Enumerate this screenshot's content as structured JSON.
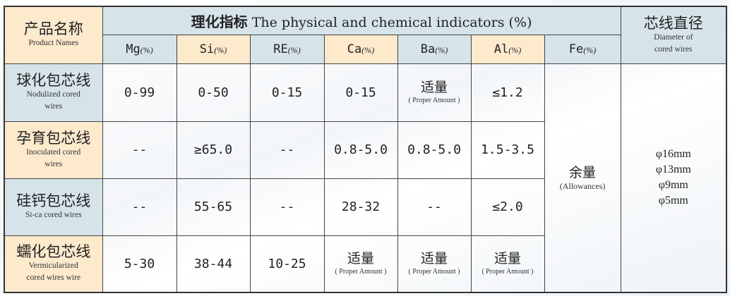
{
  "header": {
    "product_cn": "产品名称",
    "product_en": "Product Names",
    "indicators_cn": "理化指标",
    "indicators_en": "The physical and chemical indicators (%)",
    "diameter_cn": "芯线直径",
    "diameter_en_1": "Diameter of",
    "diameter_en_2": "cored wires",
    "columns": [
      {
        "el": "Mg",
        "unit": "(%)"
      },
      {
        "el": "Si",
        "unit": "(%)"
      },
      {
        "el": "RE",
        "unit": "(%)"
      },
      {
        "el": "Ca",
        "unit": "(%)"
      },
      {
        "el": "Ba",
        "unit": "(%)"
      },
      {
        "el": "Al",
        "unit": "(%)"
      },
      {
        "el": "Fe",
        "unit": "(%)"
      }
    ]
  },
  "rows": [
    {
      "cn": "球化包芯线",
      "en1": "Nodulized cored",
      "en2": "wires",
      "mg": "0-99",
      "si": "0-50",
      "re": "0-15",
      "ca": "0-15",
      "ba": "适量",
      "ba_sub": "( Proper Amount )",
      "al": "≤1.2"
    },
    {
      "cn": "孕育包芯线",
      "en1": "Inoculated cored",
      "en2": "wires",
      "mg": "--",
      "si": "≥65.0",
      "re": "--",
      "ca": "0.8-5.0",
      "ba": "0.8-5.0",
      "al": "1.5-3.5"
    },
    {
      "cn": "硅钙包芯线",
      "en1": "Si-ca cored wires",
      "mg": "--",
      "si": "55-65",
      "re": "--",
      "ca": "28-32",
      "ba": "--",
      "al": "≤2.0"
    },
    {
      "cn": "蠕化包芯线",
      "en1": "Vermicularized",
      "en2": "cored wires wire",
      "mg": "5-30",
      "si": "38-44",
      "re": "10-25",
      "ca": "适量",
      "ca_sub": "( Proper Amount )",
      "ba": "适量",
      "ba_sub": "( Proper Amount )",
      "al": "适量",
      "al_sub": "( Proper Amount )"
    }
  ],
  "fe": {
    "cn": "余量",
    "en": "(Allowances)"
  },
  "diameters": [
    "φ16mm",
    "φ13mm",
    "φ9mm",
    "φ5mm"
  ],
  "colors": {
    "peach": "#fde9cc",
    "blue": "#d6e4ea",
    "border": "#444444"
  }
}
